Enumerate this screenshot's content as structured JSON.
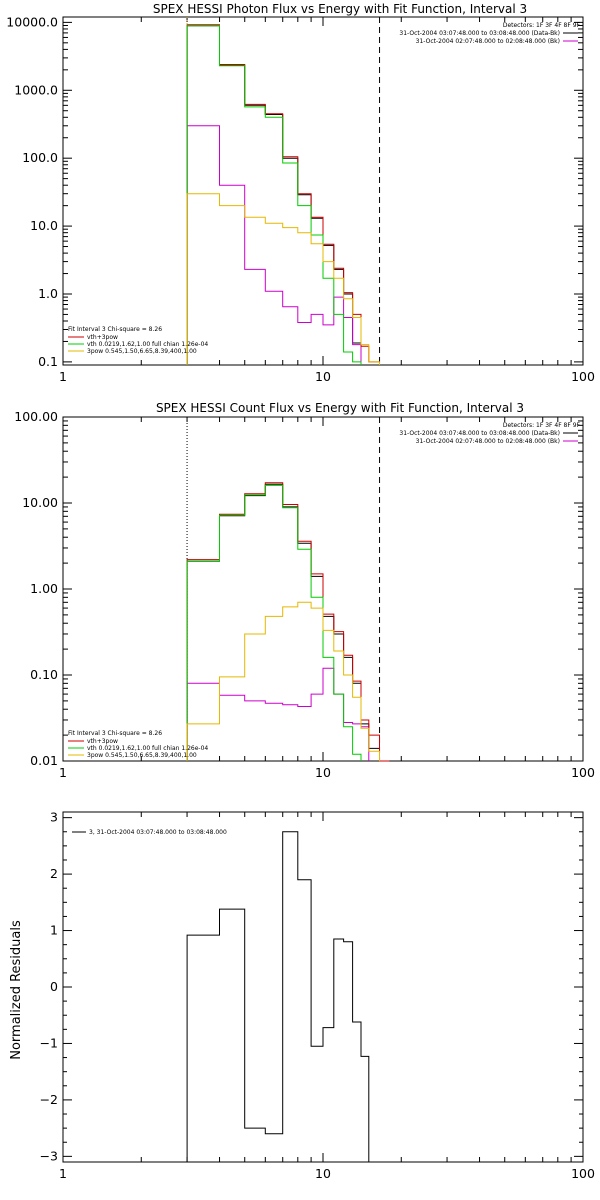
{
  "chart_data": [
    {
      "type": "line",
      "title": "SPEX HESSI Photon Flux vs Energy with Fit Function, Interval 3",
      "xlabel": "",
      "ylabel": "",
      "xscale": "log",
      "yscale": "log",
      "xlim": [
        1,
        100
      ],
      "ylim": [
        0.09,
        12000
      ],
      "x_ticks": [
        "1",
        "10",
        "100"
      ],
      "y_ticks": [
        {
          "value": 0.1,
          "label": "0.1"
        },
        {
          "value": 1,
          "label": "1.0"
        },
        {
          "value": 10,
          "label": "10.0"
        },
        {
          "value": 100,
          "label": "100.0"
        },
        {
          "value": 1000,
          "label": "1000.0"
        },
        {
          "value": 10000,
          "label": "10000.0"
        }
      ],
      "vlines": [
        {
          "x": 3,
          "style": "dotted",
          "color": "#d4a017"
        },
        {
          "x": 16.5,
          "style": "dashed",
          "color": "#000000"
        }
      ],
      "legend_top_right": [
        "Detectors: 1F 3F 4F 8F 9F",
        "31-Oct-2004 03:07:48.000 to 03:08:48.000 (Data-Bk)",
        "31-Oct-2004 02:07:48.000 to 02:08:48.000 (Bk)"
      ],
      "legend_bottom_left": [
        "Fit Interval 3   Chi-square = 8.26",
        "vth+3pow",
        "vth 0.0219,1.62,1.00  full chian 1.26e-04",
        "3pow 0.545,1.50,6.65,8.39,400,1.00"
      ],
      "edges": [
        3,
        4,
        5,
        6,
        7,
        8,
        9,
        10,
        11,
        12,
        13,
        14,
        15,
        16.5,
        18
      ],
      "series": [
        {
          "name": "31-Oct-2004 03:07:48.000 to 03:08:48.000 (Data-Bk)",
          "color": "#000000",
          "values": [
            8900,
            2350,
            600,
            440,
            100,
            29,
            13,
            5.2,
            2.3,
            1.0,
            0.19,
            null,
            null,
            null
          ]
        },
        {
          "name": "31-Oct-2004 02:07:48.000 to 02:08:48.000 (Bk)",
          "color": "#cc00cc",
          "values": [
            300,
            40,
            2.3,
            1.1,
            0.65,
            0.38,
            0.5,
            0.35,
            0.9,
            0.45,
            0.18,
            null,
            null,
            null
          ]
        },
        {
          "name": "vth+3pow",
          "color": "#cc0000",
          "values": [
            9200,
            2400,
            620,
            450,
            105,
            30,
            13.5,
            5.4,
            2.4,
            1.05,
            0.5,
            0.17,
            0.1,
            null
          ]
        },
        {
          "name": "vth 0.0219,1.62,1.00  full chian 1.26e-04",
          "color": "#00cc00",
          "values": [
            8900,
            2300,
            570,
            400,
            85,
            20,
            7.4,
            1.7,
            0.5,
            0.14,
            0.1,
            null,
            null,
            null
          ]
        },
        {
          "name": "3pow 0.545,1.50,6.65,8.39,400,1.00",
          "color": "#e6b800",
          "values": [
            30,
            20,
            13.5,
            11,
            9.5,
            8.0,
            5.5,
            3.0,
            1.7,
            0.85,
            0.45,
            0.18,
            0.1,
            null
          ]
        }
      ]
    },
    {
      "type": "line",
      "title": "SPEX HESSI Count Flux vs Energy with Fit Function, Interval 3",
      "xlabel": "",
      "ylabel": "",
      "xscale": "log",
      "yscale": "log",
      "xlim": [
        1,
        100
      ],
      "ylim": [
        0.01,
        100
      ],
      "x_ticks": [
        "1",
        "10",
        "100"
      ],
      "y_ticks": [
        {
          "value": 0.01,
          "label": "0.01"
        },
        {
          "value": 0.1,
          "label": "0.10"
        },
        {
          "value": 1,
          "label": "1.00"
        },
        {
          "value": 10,
          "label": "10.00"
        },
        {
          "value": 100,
          "label": "100.00"
        }
      ],
      "vlines": [
        {
          "x": 3,
          "style": "dotted",
          "color": "#000000"
        },
        {
          "x": 16.5,
          "style": "dashed",
          "color": "#000000"
        }
      ],
      "legend_top_right": [
        "Detectors: 1F 3F 4F 8F 9F",
        "31-Oct-2004 03:07:48.000 to 03:08:48.000 (Data-Bk)",
        "31-Oct-2004 02:07:48.000 to 02:08:48.000 (Bk)"
      ],
      "legend_bottom_left": [
        "Fit Interval 3   Chi-square = 8.26",
        "vth+3pow",
        "vth 0.0219,1.62,1.00  full chian 1.26e-04",
        "3pow 0.545,1.50,6.65,8.39,400,1.00"
      ],
      "edges": [
        3,
        4,
        5,
        6,
        7,
        8,
        9,
        10,
        11,
        12,
        13,
        14,
        15,
        16.5,
        18
      ],
      "series": [
        {
          "name": "31-Oct-2004 03:07:48.000 to 03:08:48.000 (Data-Bk)",
          "color": "#000000",
          "values": [
            2.1,
            7.1,
            12.2,
            16.5,
            9.0,
            3.4,
            1.4,
            0.48,
            0.3,
            0.16,
            0.08,
            0.027,
            0.014,
            null
          ]
        },
        {
          "name": "31-Oct-2004 02:07:48.000 to 02:08:48.000 (Bk)",
          "color": "#cc00cc",
          "values": [
            0.08,
            0.058,
            0.05,
            0.047,
            0.045,
            0.043,
            0.06,
            0.12,
            0.06,
            0.028,
            0.027,
            0.025,
            null,
            null
          ]
        },
        {
          "name": "vth+3pow",
          "color": "#cc0000",
          "values": [
            2.2,
            7.4,
            12.8,
            17.2,
            9.6,
            3.6,
            1.5,
            0.51,
            0.32,
            0.17,
            0.085,
            0.03,
            0.02,
            0.01
          ]
        },
        {
          "name": "vth 0.0219,1.62,1.00  full chian 1.26e-04",
          "color": "#00cc00",
          "values": [
            2.1,
            7.2,
            12.4,
            16.0,
            8.8,
            2.9,
            0.8,
            0.16,
            0.06,
            0.025,
            0.012,
            null,
            null,
            null
          ]
        },
        {
          "name": "3pow 0.545,1.50,6.65,8.39,400,1.00",
          "color": "#e6b800",
          "values": [
            0.027,
            0.095,
            0.3,
            0.48,
            0.62,
            0.7,
            0.6,
            0.33,
            0.19,
            0.1,
            0.055,
            0.024,
            0.013,
            null
          ]
        }
      ]
    },
    {
      "type": "line",
      "title": "",
      "xlabel": "",
      "ylabel": "Normalized Residuals",
      "xscale": "log",
      "yscale": "linear",
      "xlim": [
        1,
        100
      ],
      "ylim": [
        -3.1,
        3.1
      ],
      "x_ticks": [
        "1",
        "10",
        "100"
      ],
      "y_ticks": [
        {
          "value": -3,
          "label": "−3"
        },
        {
          "value": -2,
          "label": "−2"
        },
        {
          "value": -1,
          "label": "−1"
        },
        {
          "value": 0,
          "label": "0"
        },
        {
          "value": 1,
          "label": "1"
        },
        {
          "value": 2,
          "label": "2"
        },
        {
          "value": 3,
          "label": "3"
        }
      ],
      "legend_top_left": [
        "3, 31-Oct-2004 03:07:48.000 to 03:08:48.000"
      ],
      "edges": [
        3,
        4,
        5,
        6,
        7,
        8,
        9,
        10,
        11,
        12,
        13,
        14,
        15,
        16.5
      ],
      "series": [
        {
          "name": "3, 31-Oct-2004 03:07:48.000 to 03:08:48.000",
          "color": "#000000",
          "values": [
            0.92,
            1.38,
            -2.5,
            -2.6,
            2.75,
            1.9,
            -1.05,
            -0.72,
            0.85,
            0.8,
            -0.62,
            -1.23,
            null
          ]
        }
      ]
    }
  ]
}
